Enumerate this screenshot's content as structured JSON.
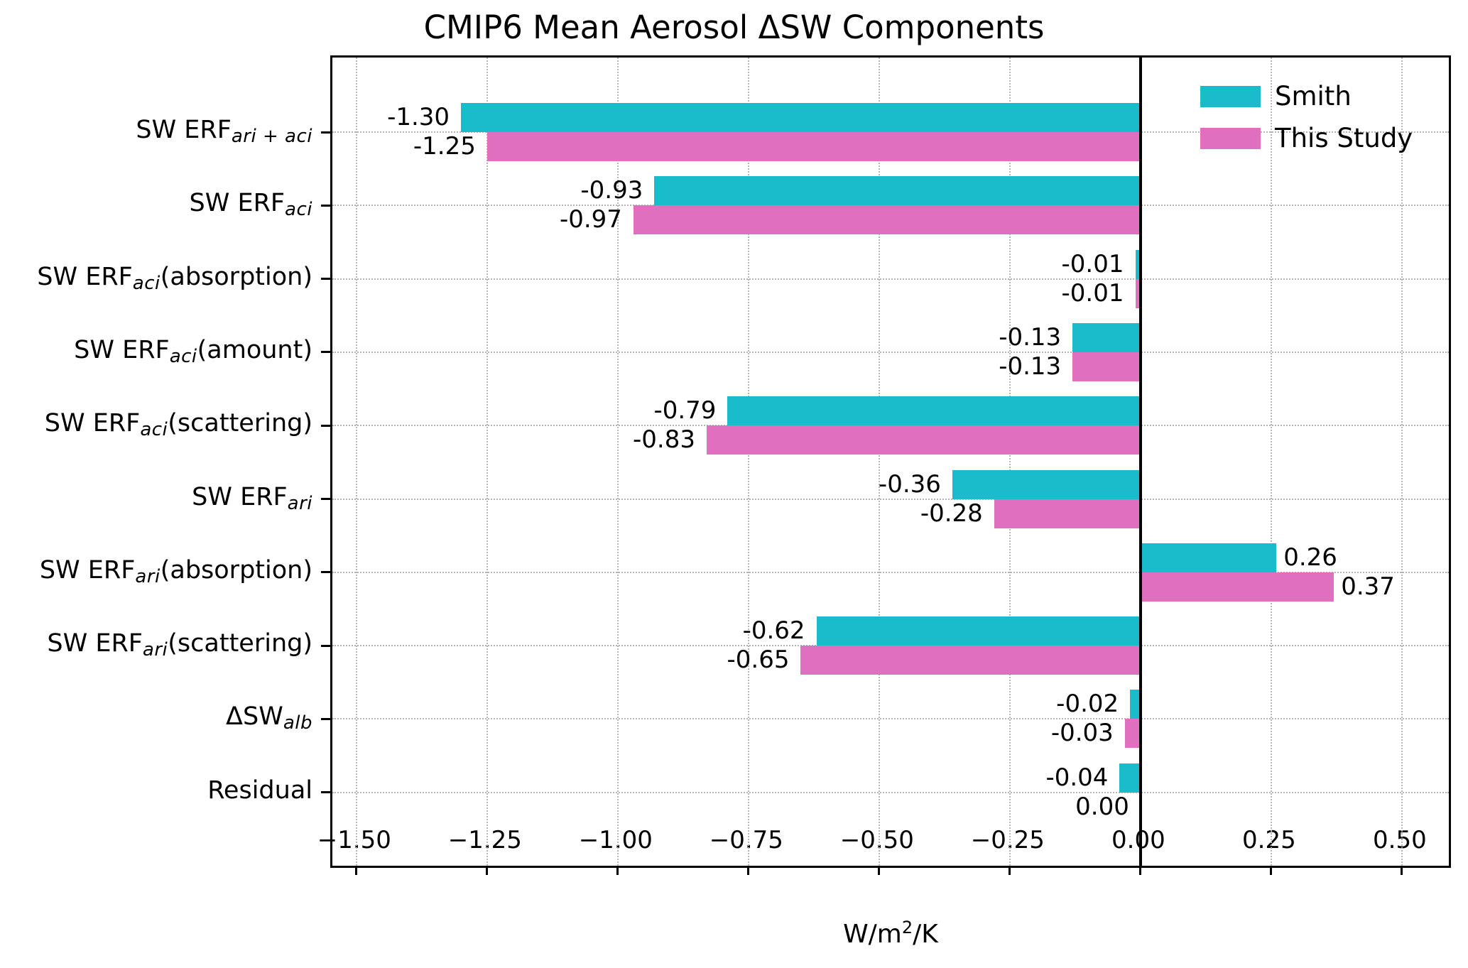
{
  "chart_data": {
    "type": "bar",
    "orientation": "horizontal",
    "title": "CMIP6 Mean Aerosol ΔSW Components",
    "xlabel": "W/m²/K",
    "xlabel_parts": {
      "pre": "W/m",
      "sup": "2",
      "post": "/K"
    },
    "categories": [
      {
        "base": "SW ERF",
        "sub": "ari + aci",
        "suffix": ""
      },
      {
        "base": "SW ERF",
        "sub": "aci",
        "suffix": ""
      },
      {
        "base": "SW ERF",
        "sub": "aci",
        "suffix": " (absorption)"
      },
      {
        "base": "SW ERF",
        "sub": "aci",
        "suffix": " (amount)"
      },
      {
        "base": "SW ERF",
        "sub": "aci",
        "suffix": " (scattering)"
      },
      {
        "base": "SW ERF",
        "sub": "ari",
        "suffix": ""
      },
      {
        "base": "SW ERF",
        "sub": "ari",
        "suffix": " (absorption)"
      },
      {
        "base": "SW ERF",
        "sub": "ari",
        "suffix": " (scattering)"
      },
      {
        "base": "ΔSW",
        "sub": "alb",
        "suffix": ""
      },
      {
        "base": "Residual",
        "sub": "",
        "suffix": ""
      }
    ],
    "series": [
      {
        "name": "Smith",
        "color": "#1abccc",
        "values": [
          -1.3,
          -0.93,
          -0.01,
          -0.13,
          -0.79,
          -0.36,
          0.26,
          -0.62,
          -0.02,
          -0.04
        ]
      },
      {
        "name": "This Study",
        "color": "#e16fc0",
        "values": [
          -1.25,
          -0.97,
          -0.01,
          -0.13,
          -0.83,
          -0.28,
          0.37,
          -0.65,
          -0.03,
          0.0
        ]
      }
    ],
    "value_label_format": "0.00 (two decimals)",
    "x_ticks": {
      "values": [
        -1.5,
        -1.25,
        -1.0,
        -0.75,
        -0.5,
        -0.25,
        0.0,
        0.25,
        0.5
      ],
      "labels": [
        "−1.50",
        "−1.25",
        "−1.00",
        "−0.75",
        "−0.50",
        "−0.25",
        "0.00",
        "0.25",
        "0.50"
      ]
    },
    "xlim": [
      -1.546,
      0.598
    ],
    "grid": {
      "style": "dotted",
      "color": "#b3b3b3",
      "axes": "both"
    },
    "zero_line": {
      "show": true,
      "color": "#000000"
    },
    "legend": {
      "position": "upper right",
      "frame": false,
      "entries": [
        "Smith",
        "This Study"
      ]
    }
  }
}
